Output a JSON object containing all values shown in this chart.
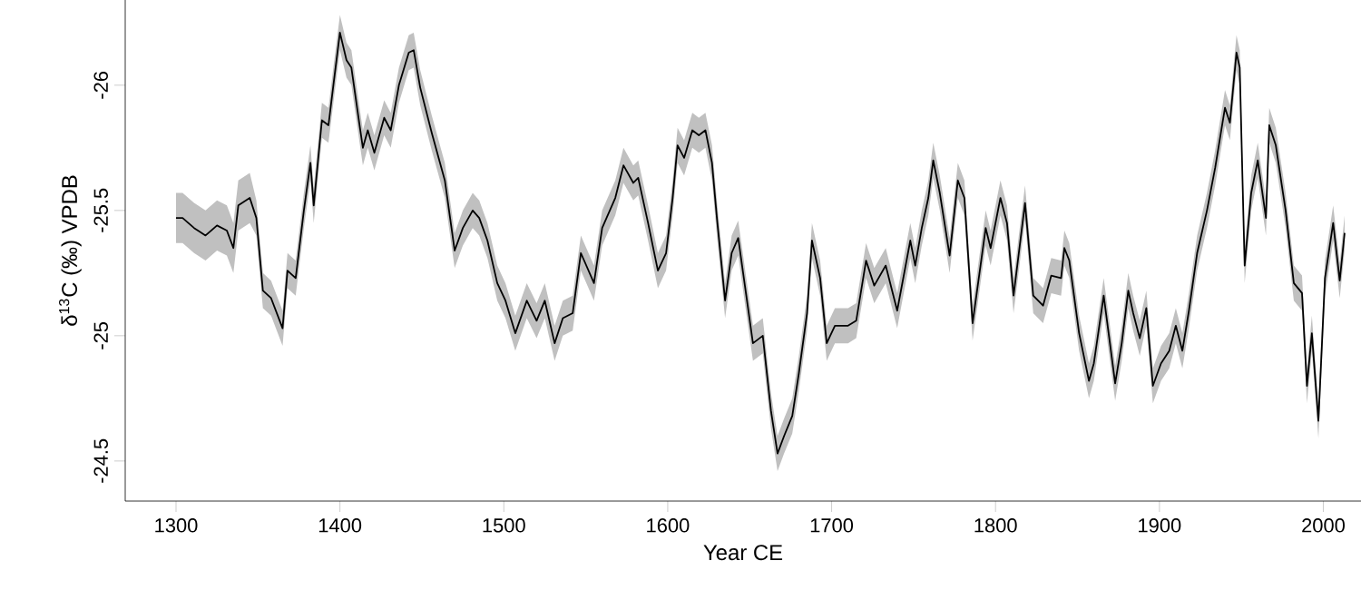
{
  "chart_data": {
    "type": "line",
    "xlabel": "Year CE",
    "ylabel": "δ$^{13}$C (‰) VPDB",
    "xlim": [
      1269,
      2023
    ],
    "ylim": [
      -24.34,
      -26.34
    ],
    "xticks": [
      1300,
      1400,
      1500,
      1600,
      1700,
      1800,
      1900,
      2000
    ],
    "yticks": [
      -26,
      -25.5,
      -25,
      -24.5
    ],
    "series": [
      {
        "color": "#000000",
        "x": [
          1300,
          1304,
          1311,
          1318,
          1325,
          1331,
          1335,
          1338,
          1345,
          1349,
          1353,
          1358,
          1365,
          1368,
          1373,
          1378,
          1382,
          1384,
          1389,
          1393,
          1396,
          1400,
          1404,
          1407,
          1412,
          1414,
          1417,
          1421,
          1427,
          1431,
          1436,
          1442,
          1445,
          1449,
          1456,
          1464,
          1470,
          1475,
          1481,
          1485,
          1490,
          1496,
          1501,
          1507,
          1514,
          1520,
          1525,
          1531,
          1536,
          1542,
          1547,
          1555,
          1560,
          1568,
          1573,
          1579,
          1582,
          1588,
          1594,
          1599,
          1603,
          1606,
          1610,
          1615,
          1619,
          1623,
          1627,
          1630,
          1635,
          1639,
          1643,
          1649,
          1652,
          1658,
          1663,
          1667,
          1671,
          1676,
          1680,
          1685,
          1688,
          1693,
          1697,
          1702,
          1710,
          1715,
          1721,
          1726,
          1733,
          1740,
          1748,
          1751,
          1755,
          1759,
          1762,
          1766,
          1772,
          1777,
          1781,
          1786,
          1794,
          1797,
          1803,
          1807,
          1811,
          1818,
          1823,
          1829,
          1834,
          1840,
          1842,
          1845,
          1851,
          1857,
          1860,
          1866,
          1873,
          1877,
          1881,
          1884,
          1888,
          1892,
          1896,
          1901,
          1906,
          1910,
          1914,
          1918,
          1923,
          1929,
          1934,
          1940,
          1943,
          1947,
          1949,
          1952,
          1956,
          1960,
          1965,
          1967,
          1971,
          1977,
          1982,
          1987,
          1990,
          1993,
          1997,
          2001,
          2006,
          2010,
          2013
        ],
        "values": [
          -25.47,
          -25.47,
          -25.43,
          -25.4,
          -25.44,
          -25.42,
          -25.35,
          -25.52,
          -25.55,
          -25.47,
          -25.18,
          -25.15,
          -25.03,
          -25.26,
          -25.23,
          -25.5,
          -25.69,
          -25.52,
          -25.86,
          -25.84,
          -26.0,
          -26.21,
          -26.1,
          -26.07,
          -25.84,
          -25.75,
          -25.82,
          -25.73,
          -25.87,
          -25.82,
          -26.0,
          -26.13,
          -26.14,
          -25.99,
          -25.81,
          -25.62,
          -25.34,
          -25.43,
          -25.5,
          -25.47,
          -25.38,
          -25.21,
          -25.14,
          -25.01,
          -25.14,
          -25.06,
          -25.14,
          -24.97,
          -25.07,
          -25.09,
          -25.33,
          -25.21,
          -25.43,
          -25.55,
          -25.68,
          -25.61,
          -25.63,
          -25.45,
          -25.26,
          -25.33,
          -25.55,
          -25.76,
          -25.71,
          -25.82,
          -25.8,
          -25.82,
          -25.69,
          -25.47,
          -25.14,
          -25.33,
          -25.39,
          -25.11,
          -24.97,
          -25.0,
          -24.7,
          -24.53,
          -24.6,
          -24.68,
          -24.85,
          -25.09,
          -25.38,
          -25.23,
          -24.97,
          -25.04,
          -25.04,
          -25.06,
          -25.3,
          -25.2,
          -25.28,
          -25.1,
          -25.38,
          -25.28,
          -25.43,
          -25.55,
          -25.7,
          -25.57,
          -25.32,
          -25.62,
          -25.55,
          -25.05,
          -25.43,
          -25.35,
          -25.55,
          -25.45,
          -25.16,
          -25.53,
          -25.16,
          -25.12,
          -25.24,
          -25.23,
          -25.35,
          -25.3,
          -25.01,
          -24.82,
          -24.89,
          -25.16,
          -24.81,
          -24.97,
          -25.18,
          -25.09,
          -24.99,
          -25.11,
          -24.8,
          -24.89,
          -24.94,
          -25.04,
          -24.94,
          -25.1,
          -25.33,
          -25.5,
          -25.67,
          -25.91,
          -25.85,
          -26.13,
          -26.07,
          -25.28,
          -25.57,
          -25.7,
          -25.47,
          -25.84,
          -25.76,
          -25.5,
          -25.21,
          -25.17,
          -24.8,
          -25.01,
          -24.66,
          -25.23,
          -25.45,
          -25.22,
          -25.41
        ],
        "lower": [
          -25.57,
          -25.57,
          -25.53,
          -25.5,
          -25.54,
          -25.52,
          -25.45,
          -25.62,
          -25.65,
          -25.54,
          -25.25,
          -25.22,
          -25.1,
          -25.33,
          -25.3,
          -25.57,
          -25.76,
          -25.59,
          -25.93,
          -25.91,
          -26.07,
          -26.28,
          -26.17,
          -26.14,
          -25.91,
          -25.82,
          -25.89,
          -25.8,
          -25.94,
          -25.89,
          -26.07,
          -26.2,
          -26.21,
          -26.06,
          -25.88,
          -25.69,
          -25.41,
          -25.5,
          -25.57,
          -25.54,
          -25.45,
          -25.28,
          -25.21,
          -25.08,
          -25.21,
          -25.13,
          -25.21,
          -25.04,
          -25.14,
          -25.16,
          -25.4,
          -25.28,
          -25.5,
          -25.62,
          -25.75,
          -25.68,
          -25.7,
          -25.52,
          -25.33,
          -25.4,
          -25.62,
          -25.83,
          -25.78,
          -25.89,
          -25.87,
          -25.89,
          -25.76,
          -25.54,
          -25.21,
          -25.4,
          -25.46,
          -25.18,
          -25.04,
          -25.07,
          -24.77,
          -24.6,
          -24.67,
          -24.75,
          -24.92,
          -25.16,
          -25.45,
          -25.3,
          -25.04,
          -25.11,
          -25.11,
          -25.13,
          -25.37,
          -25.27,
          -25.35,
          -25.17,
          -25.45,
          -25.35,
          -25.5,
          -25.62,
          -25.77,
          -25.64,
          -25.39,
          -25.69,
          -25.62,
          -25.12,
          -25.5,
          -25.42,
          -25.62,
          -25.52,
          -25.23,
          -25.6,
          -25.23,
          -25.19,
          -25.31,
          -25.3,
          -25.42,
          -25.37,
          -25.08,
          -24.89,
          -24.96,
          -25.23,
          -24.88,
          -25.04,
          -25.25,
          -25.16,
          -25.06,
          -25.18,
          -24.87,
          -24.96,
          -25.01,
          -25.11,
          -25.01,
          -25.17,
          -25.4,
          -25.57,
          -25.74,
          -25.98,
          -25.92,
          -26.2,
          -26.14,
          -25.35,
          -25.64,
          -25.77,
          -25.54,
          -25.91,
          -25.83,
          -25.57,
          -25.28,
          -25.24,
          -24.87,
          -25.08,
          -24.73,
          -25.3,
          -25.52,
          -25.29,
          -25.48
        ],
        "upper": [
          -25.37,
          -25.37,
          -25.33,
          -25.3,
          -25.34,
          -25.32,
          -25.25,
          -25.42,
          -25.45,
          -25.4,
          -25.11,
          -25.08,
          -24.96,
          -25.19,
          -25.16,
          -25.43,
          -25.62,
          -25.45,
          -25.79,
          -25.77,
          -25.93,
          -26.14,
          -26.03,
          -26.0,
          -25.77,
          -25.68,
          -25.75,
          -25.66,
          -25.8,
          -25.75,
          -25.93,
          -26.06,
          -26.07,
          -25.92,
          -25.74,
          -25.55,
          -25.27,
          -25.36,
          -25.43,
          -25.4,
          -25.31,
          -25.14,
          -25.07,
          -24.94,
          -25.07,
          -24.99,
          -25.07,
          -24.9,
          -25.0,
          -25.02,
          -25.26,
          -25.14,
          -25.36,
          -25.48,
          -25.61,
          -25.54,
          -25.56,
          -25.38,
          -25.19,
          -25.26,
          -25.48,
          -25.69,
          -25.64,
          -25.75,
          -25.73,
          -25.75,
          -25.62,
          -25.4,
          -25.07,
          -25.26,
          -25.32,
          -25.04,
          -24.9,
          -24.93,
          -24.63,
          -24.46,
          -24.53,
          -24.61,
          -24.78,
          -25.02,
          -25.31,
          -25.16,
          -24.9,
          -24.97,
          -24.97,
          -24.99,
          -25.23,
          -25.13,
          -25.21,
          -25.03,
          -25.31,
          -25.21,
          -25.36,
          -25.48,
          -25.63,
          -25.5,
          -25.25,
          -25.55,
          -25.48,
          -24.98,
          -25.36,
          -25.28,
          -25.48,
          -25.38,
          -25.09,
          -25.46,
          -25.09,
          -25.05,
          -25.17,
          -25.16,
          -25.28,
          -25.23,
          -24.94,
          -24.75,
          -24.82,
          -25.09,
          -24.74,
          -24.9,
          -25.11,
          -25.02,
          -24.92,
          -25.04,
          -24.73,
          -24.82,
          -24.87,
          -24.97,
          -24.87,
          -25.03,
          -25.26,
          -25.43,
          -25.6,
          -25.84,
          -25.78,
          -26.06,
          -26.0,
          -25.21,
          -25.5,
          -25.63,
          -25.4,
          -25.77,
          -25.69,
          -25.43,
          -25.14,
          -25.1,
          -24.73,
          -24.94,
          -24.59,
          -25.16,
          -25.38,
          -25.15,
          -25.34
        ]
      }
    ]
  }
}
